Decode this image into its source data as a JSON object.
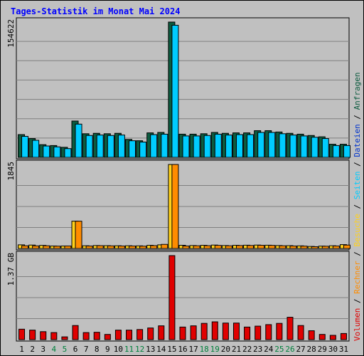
{
  "chart_data": {
    "type": "bar",
    "title": "Tages-Statistik im Monat Mai 2024",
    "categories": [
      "1",
      "2",
      "3",
      "4",
      "5",
      "6",
      "7",
      "8",
      "9",
      "10",
      "11",
      "12",
      "13",
      "14",
      "15",
      "16",
      "17",
      "18",
      "19",
      "20",
      "21",
      "22",
      "23",
      "24",
      "25",
      "26",
      "27",
      "28",
      "29",
      "30",
      "31"
    ],
    "weekend_days": [
      "4",
      "5",
      "11",
      "12",
      "18",
      "19",
      "25",
      "26"
    ],
    "panels": [
      {
        "name": "top",
        "ymax_label": "154622",
        "ylim": [
          0,
          154622
        ],
        "series": [
          {
            "name": "Anfragen",
            "color": "#0c5b3f",
            "values": [
              26000,
              21500,
              14500,
              13500,
              11500,
              41500,
              27000,
              27500,
              27000,
              27500,
              20500,
              19000,
              28000,
              28500,
              154622,
              26500,
              26500,
              27000,
              28500,
              27500,
              28000,
              28000,
              30500,
              30500,
              29000,
              27500,
              26500,
              25000,
              23500,
              15000,
              15000
            ]
          },
          {
            "name": "Dateien",
            "color": "#00ccff",
            "values": [
              24000,
              19500,
              13000,
              12000,
              10000,
              38000,
              25000,
              25500,
              25000,
              25500,
              19000,
              17500,
              26000,
              26500,
              151000,
              24500,
              24500,
              25000,
              26500,
              25500,
              26000,
              26000,
              28500,
              28500,
              27000,
              25500,
              24500,
              23000,
              21500,
              13500,
              13500
            ]
          }
        ]
      },
      {
        "name": "middle",
        "ymax_label": "1845",
        "ylim": [
          0,
          1845
        ],
        "series": [
          {
            "name": "Seiten",
            "color": "#ffd11a",
            "values": [
              80,
              75,
              68,
              55,
              55,
              600,
              60,
              65,
              62,
              60,
              60,
              58,
              70,
              80,
              1845,
              70,
              65,
              70,
              75,
              65,
              70,
              72,
              75,
              72,
              65,
              62,
              58,
              45,
              52,
              60,
              85
            ]
          },
          {
            "name": "Besuche",
            "color": "#ff8c00",
            "values": [
              60,
              58,
              60,
              52,
              55,
              600,
              55,
              62,
              58,
              55,
              55,
              52,
              63,
              90,
              1845,
              55,
              60,
              62,
              68,
              60,
              65,
              66,
              70,
              68,
              60,
              55,
              52,
              40,
              50,
              55,
              75
            ]
          }
        ]
      },
      {
        "name": "bottom",
        "ymax_label": "1.37 GB",
        "ylim": [
          0,
          1.37
        ],
        "series": [
          {
            "name": "Volumen",
            "color": "#e00000",
            "values": [
              0.17,
              0.155,
              0.13,
              0.115,
              0.045,
              0.23,
              0.115,
              0.12,
              0.085,
              0.155,
              0.155,
              0.165,
              0.19,
              0.225,
              1.37,
              0.205,
              0.225,
              0.265,
              0.29,
              0.27,
              0.27,
              0.205,
              0.22,
              0.245,
              0.265,
              0.365,
              0.23,
              0.145,
              0.085,
              0.07,
              0.1
            ]
          }
        ]
      }
    ],
    "legend_right": [
      {
        "label": "Volumen",
        "color": "#e00000"
      },
      {
        "label": "Rechner",
        "color": "#ff8c00"
      },
      {
        "label": "Besuche",
        "color": "#ffd11a"
      },
      {
        "label": "Seiten",
        "color": "#00ccff"
      },
      {
        "label": "Dateien",
        "color": "#0033cc"
      },
      {
        "label": "Anfragen",
        "color": "#0c5b3f"
      }
    ],
    "legend_sep": "/",
    "grid": true
  },
  "colors": {
    "background": "#c0c0c0",
    "panel": "#c0c0c0",
    "grid": "#808080",
    "title": "#0000ff",
    "weekend_tick": "#00803c",
    "weekday_tick": "#000000"
  }
}
